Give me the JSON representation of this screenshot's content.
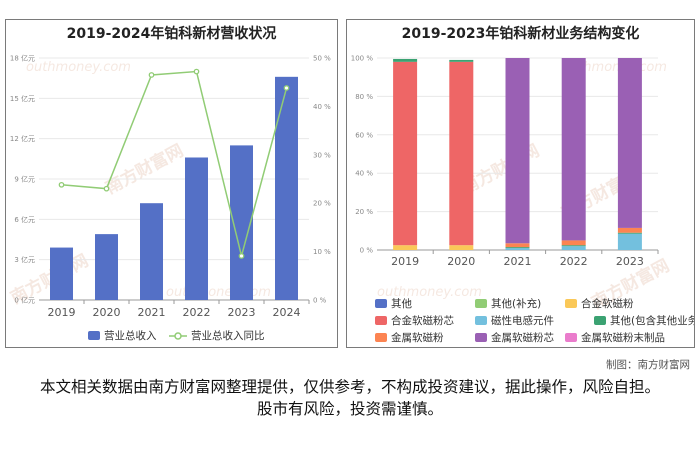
{
  "left_chart": {
    "title": "2019-2024年铂科新材营收状况",
    "chart_data": {
      "type": "bar",
      "categories": [
        "2019",
        "2020",
        "2021",
        "2022",
        "2023",
        "2024"
      ],
      "series": [
        {
          "name": "营业总收入",
          "type": "bar",
          "axis": "left",
          "color": "#5470c6",
          "values": [
            3.9,
            4.9,
            7.2,
            10.6,
            11.5,
            16.6
          ]
        },
        {
          "name": "营业总收入同比",
          "type": "line",
          "axis": "right",
          "color": "#91cc75",
          "values": [
            23.8,
            23.0,
            46.5,
            47.2,
            9.1,
            43.8
          ]
        }
      ],
      "ylim_left": [
        0,
        18
      ],
      "yticks_left": [
        "0 亿元",
        "3 亿元",
        "6 亿元",
        "9 亿元",
        "12 亿元",
        "15 亿元",
        "18 亿元"
      ],
      "ylim_right": [
        0,
        50
      ],
      "yticks_right": [
        "0 %",
        "10 %",
        "20 %",
        "30 %",
        "40 %",
        "50 %"
      ],
      "grid": true,
      "legend": "bottom"
    }
  },
  "right_chart": {
    "title": "2019-2023年铂科新材业务结构变化",
    "chart_data": {
      "type": "bar",
      "stacked": true,
      "categories": [
        "2019",
        "2020",
        "2021",
        "2022",
        "2023"
      ],
      "ylim": [
        0,
        100
      ],
      "yticks": [
        "0 %",
        "20 %",
        "40 %",
        "60 %",
        "80 %",
        "100 %"
      ],
      "series": [
        {
          "name": "其他",
          "color": "#5470c6",
          "values": [
            0,
            0,
            0,
            0,
            0
          ]
        },
        {
          "name": "其他(补充)",
          "color": "#91cc75",
          "values": [
            0,
            0,
            0,
            0,
            0
          ]
        },
        {
          "name": "合金软磁粉",
          "color": "#fac858",
          "values": [
            2.5,
            2.5,
            0,
            0,
            0
          ]
        },
        {
          "name": "合金软磁粉芯",
          "color": "#ee6666",
          "values": [
            95.5,
            95.5,
            0,
            0,
            0
          ]
        },
        {
          "name": "磁性电感元件",
          "color": "#73c0de",
          "values": [
            0,
            0,
            1.0,
            2.0,
            8.5
          ]
        },
        {
          "name": "其他(包含其他业务收入)",
          "color": "#3ba272",
          "values": [
            1.5,
            1.0,
            0.5,
            0.5,
            0.5
          ]
        },
        {
          "name": "金属软磁粉",
          "color": "#fc8452",
          "values": [
            0,
            0,
            2.0,
            2.5,
            2.5
          ]
        },
        {
          "name": "金属软磁粉芯",
          "color": "#9a60b4",
          "values": [
            0,
            0,
            96.5,
            95.0,
            88.5
          ]
        },
        {
          "name": "金属软磁粉末制品",
          "color": "#ea7ccc",
          "values": [
            0,
            0,
            0,
            0,
            0
          ]
        }
      ],
      "grid": true,
      "legend": "bottom"
    }
  },
  "watermark": {
    "brand": "南方财富网",
    "url": "outhmoney.com"
  },
  "credit": "制图：南方财富网",
  "disclaimer": "本文相关数据由南方财富网整理提供，仅供参考，不构成投资建议，据此操作，风险自担。股市有风险，投资需谨慎。"
}
